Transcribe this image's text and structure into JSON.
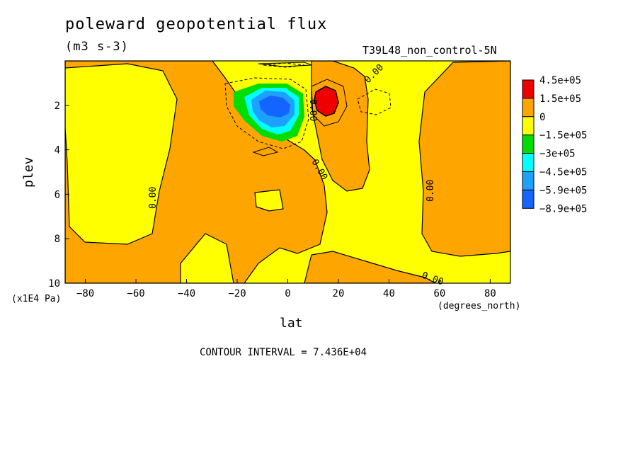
{
  "header": {
    "title": "poleward geopotential flux",
    "units": "(m3 s-3)",
    "run_label": "T39L48_non_control-5N"
  },
  "footer": {
    "contour_interval": "CONTOUR INTERVAL = 7.436E+04"
  },
  "colors": {
    "red": "#ee0000",
    "orange": "#ffa500",
    "yellow": "#ffff00",
    "green": "#00dd00",
    "cyan": "#00ffff",
    "lightblue": "#1ea0ff",
    "blue": "#1464ff"
  },
  "chart_data": {
    "type": "heatmap",
    "xlabel": "lat",
    "ylabel": "plev",
    "x_units": "(degrees_north)",
    "y_units": "(x1E4 Pa)",
    "xlim": [
      -88,
      88
    ],
    "ylim": [
      10,
      0
    ],
    "x_ticks": [
      -80,
      -60,
      -40,
      -20,
      0,
      20,
      40,
      60,
      80
    ],
    "y_ticks": [
      2,
      4,
      6,
      8,
      10
    ],
    "colorbar": {
      "levels": [
        "4.5e+05",
        "1.5e+05",
        "0",
        "-1.5e+05",
        "-3e+05",
        "-4.5e+05",
        "-5.9e+05",
        "-8.9e+05"
      ],
      "colors": [
        "#ee0000",
        "#ffa500",
        "#ffff00",
        "#00dd00",
        "#00ffff",
        "#1ea0ff",
        "#1464ff"
      ]
    },
    "contour_labels": [
      "0.00",
      "0.00",
      "0.00",
      "0.00",
      "0.00",
      "0.00"
    ],
    "features": [
      {
        "label": "negative minimum",
        "lat": -3,
        "plev": 2.0,
        "value": "-8.9e+05"
      },
      {
        "label": "positive maximum",
        "lat": 14,
        "plev": 1.9,
        "value": "4.5e+05"
      }
    ]
  }
}
